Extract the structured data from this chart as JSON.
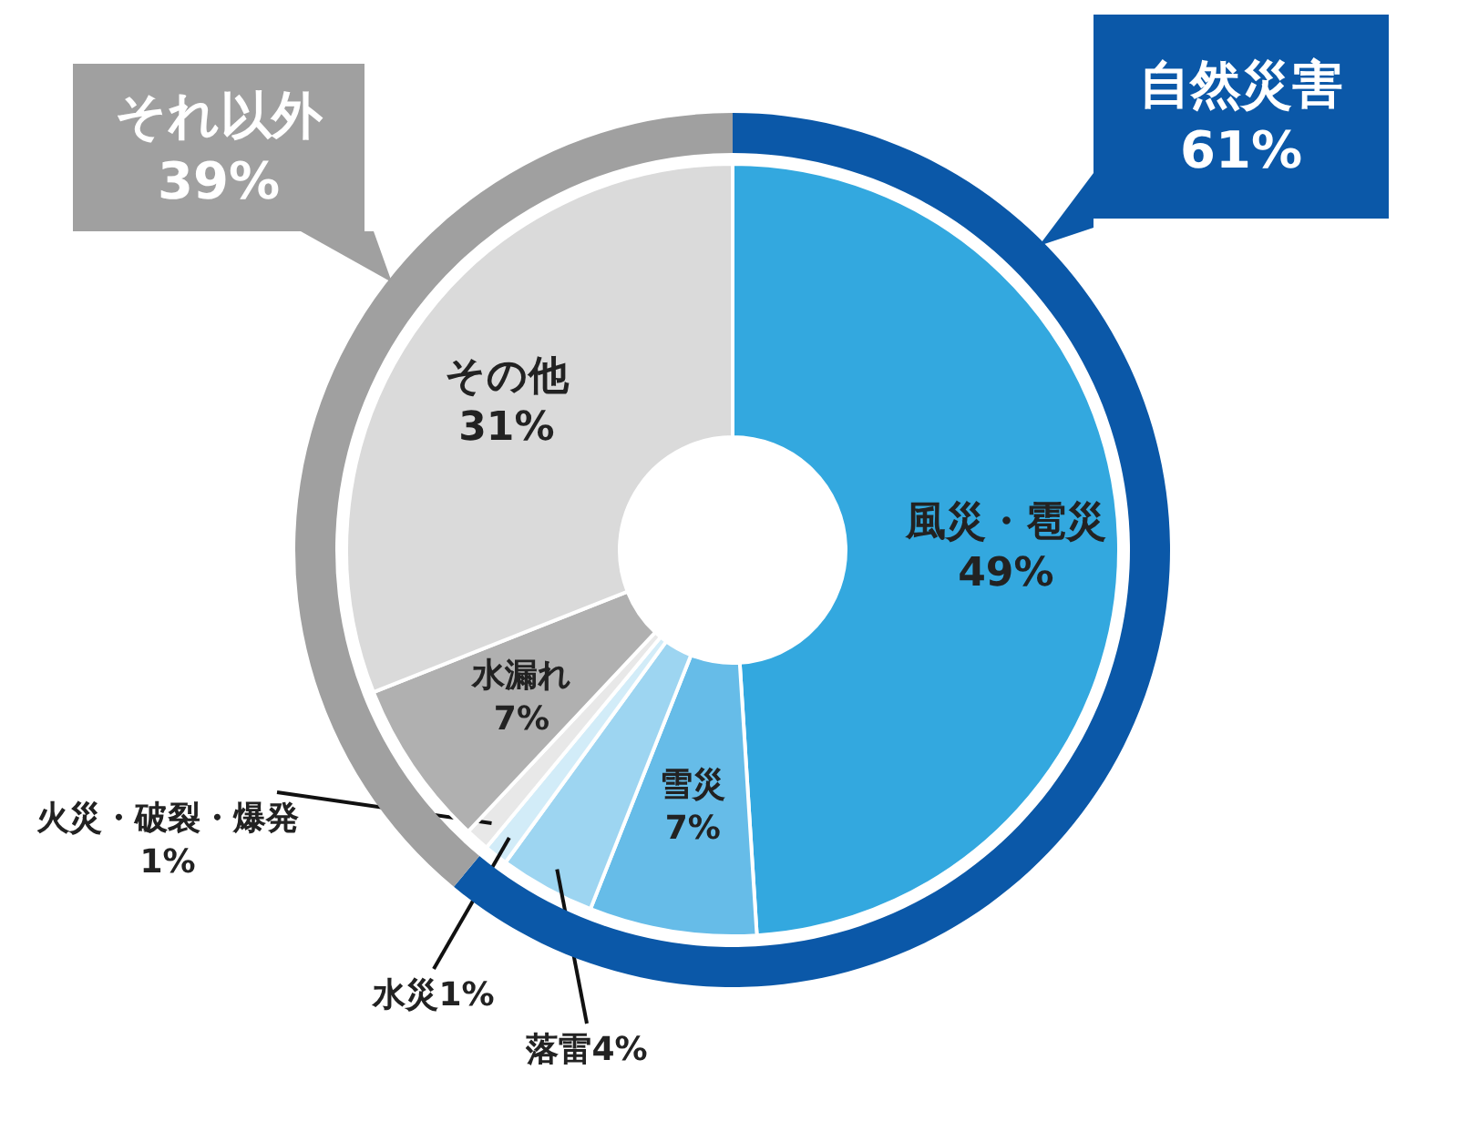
{
  "chart_data": [
    {
      "type": "donut",
      "categories": [
        "風災・雹災",
        "雪災",
        "落雷",
        "水災",
        "火災・破裂・爆発",
        "水漏れ",
        "その他"
      ],
      "values": [
        49,
        7,
        4,
        1,
        1,
        7,
        31
      ],
      "value_labels": [
        "49%",
        "7%",
        "4%",
        "1%",
        "1%",
        "7%",
        "31%"
      ],
      "colors": [
        "#33a8df",
        "#66bce8",
        "#9dd5f1",
        "#d2ecf8",
        "#e8e8e8",
        "#b0b0b0",
        "#dadada"
      ]
    },
    {
      "type": "donut",
      "categories": [
        "自然災害",
        "それ以外"
      ],
      "values": [
        61,
        39
      ],
      "value_labels": [
        "61%",
        "39%"
      ],
      "colors": [
        "#0b58a8",
        "#a0a0a0"
      ]
    }
  ]
}
